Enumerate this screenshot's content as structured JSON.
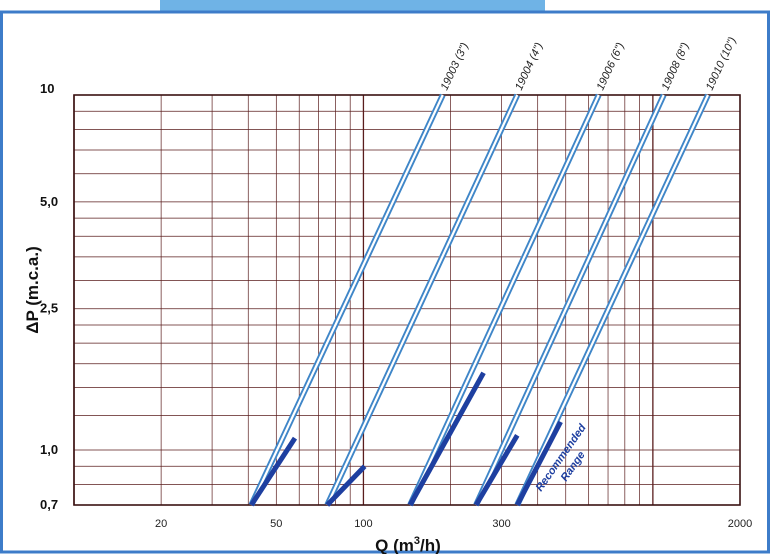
{
  "chart_data": {
    "type": "line",
    "title": "",
    "xlabel": "Q (m3/h)",
    "xlabel_main": "Q (m",
    "xlabel_sup": "3",
    "xlabel_end": "/h)",
    "ylabel": "ΔP (m.c.a.)",
    "x_scale": "log",
    "y_scale": "log",
    "xlim": [
      10,
      2000
    ],
    "ylim": [
      0.7,
      10
    ],
    "grid": true,
    "x_ticks": [
      {
        "value": 20,
        "label": "20"
      },
      {
        "value": 50,
        "label": "50"
      },
      {
        "value": 100,
        "label": "100"
      },
      {
        "value": 300,
        "label": "300"
      },
      {
        "value": 2000,
        "label": "2000"
      }
    ],
    "y_ticks": [
      {
        "value": 0.7,
        "label": "0,7"
      },
      {
        "value": 1.0,
        "label": "1,0"
      },
      {
        "value": 2.5,
        "label": "2,5"
      },
      {
        "value": 5.0,
        "label": "5,0"
      },
      {
        "value": 10,
        "label": "10"
      }
    ],
    "series": [
      {
        "name": "19003 (3\")",
        "x": [
          41,
          188
        ],
        "y": [
          0.7,
          10
        ],
        "recommended_range": {
          "x": [
            41,
            58
          ],
          "y": [
            0.7,
            1.08
          ]
        }
      },
      {
        "name": "19004 (4\")",
        "x": [
          75,
          340
        ],
        "y": [
          0.7,
          10
        ],
        "recommended_range": {
          "x": [
            75,
            101
          ],
          "y": [
            0.7,
            0.9
          ]
        }
      },
      {
        "name": "19006 (6\")",
        "x": [
          145,
          650
        ],
        "y": [
          0.7,
          10
        ],
        "recommended_range": {
          "x": [
            145,
            260
          ],
          "y": [
            0.7,
            1.65
          ]
        }
      },
      {
        "name": "19008 (8\")",
        "x": [
          245,
          1090
        ],
        "y": [
          0.7,
          10
        ],
        "recommended_range": {
          "x": [
            245,
            340
          ],
          "y": [
            0.7,
            1.1
          ]
        }
      },
      {
        "name": "19010 (10\")",
        "x": [
          340,
          1550
        ],
        "y": [
          0.7,
          10
        ],
        "recommended_range": {
          "x": [
            340,
            480
          ],
          "y": [
            0.7,
            1.2
          ]
        }
      }
    ],
    "annotation": {
      "line1": "Recommended",
      "line2": "Range"
    },
    "colors": {
      "series_line": "#3f86c8",
      "series_core": "#ffffff",
      "recommended": "#1e3fa0",
      "grid": "#5a1d1d",
      "frame": "#3d7cc9",
      "banner": "#6fb3e6"
    }
  }
}
